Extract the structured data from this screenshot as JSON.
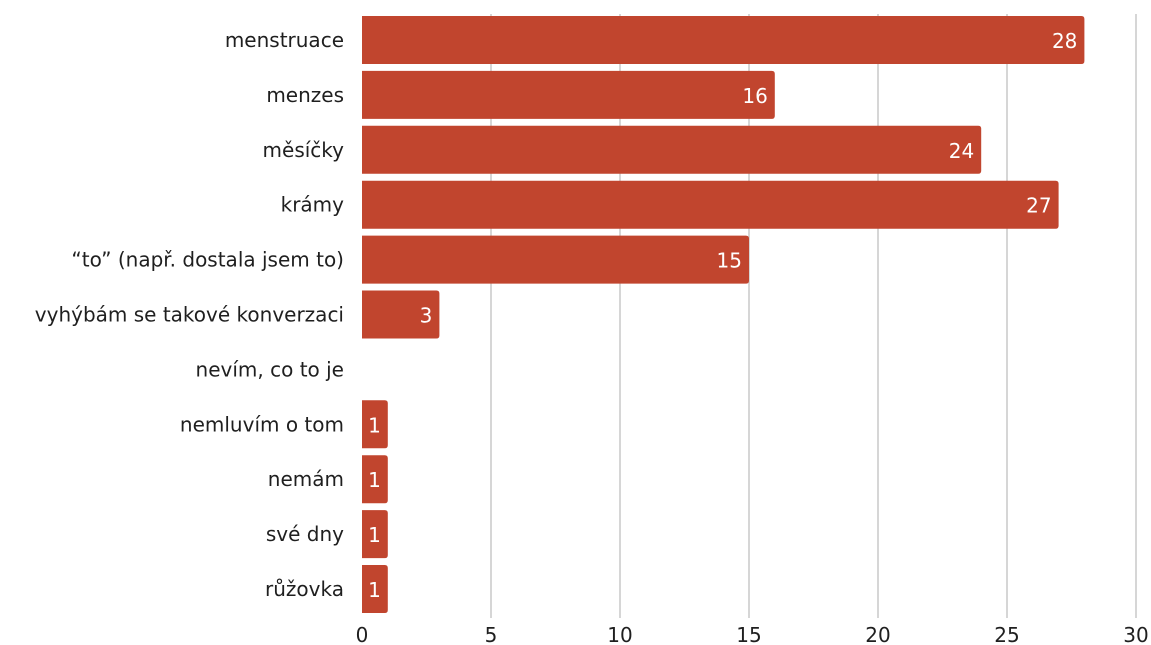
{
  "chart_data": {
    "type": "bar",
    "orientation": "horizontal",
    "categories": [
      "menstruace",
      "menzes",
      "měsíčky",
      "krámy",
      "“to” (např. dostala jsem to)",
      "vyhýbám se takové konverzaci",
      "nevím, co to je",
      "nemluvím o tom",
      "nemám",
      "své dny",
      "růžovka"
    ],
    "values": [
      28,
      16,
      24,
      27,
      15,
      3,
      0,
      1,
      1,
      1,
      1
    ],
    "xlim": [
      0,
      30
    ],
    "xticks": [
      0,
      5,
      10,
      15,
      20,
      25,
      30
    ],
    "grid": true,
    "data_labels": true,
    "bar_color": "#c1452e",
    "title": "",
    "xlabel": "",
    "ylabel": ""
  }
}
